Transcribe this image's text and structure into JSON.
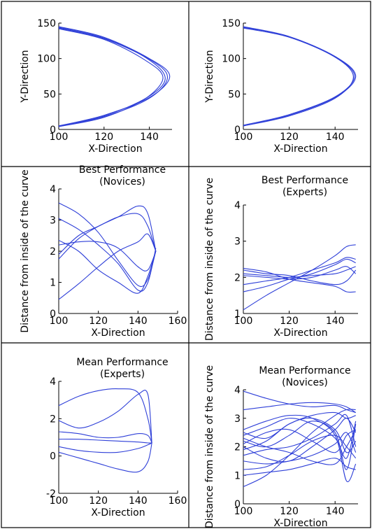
{
  "style": {
    "line_color": "#2e3fd8",
    "grid_color": "#000000"
  },
  "chart_data": [
    {
      "type": "line",
      "title": [],
      "xlabel": "X-Direction",
      "ylabel": "Y-Direction",
      "xlim": [
        100,
        150
      ],
      "ylim": [
        0,
        150
      ],
      "xticks": [
        100,
        120,
        140
      ],
      "yticks": [
        0,
        50,
        100,
        150
      ],
      "series": [
        {
          "x": [
            100,
            120,
            140,
            149,
            140,
            120,
            100
          ],
          "y": [
            145,
            130,
            100,
            75,
            45,
            20,
            5
          ]
        },
        {
          "x": [
            100,
            120,
            140,
            148,
            140,
            120,
            100
          ],
          "y": [
            143,
            128,
            99,
            74,
            44,
            18,
            4
          ]
        },
        {
          "x": [
            100,
            120,
            138,
            146,
            138,
            120,
            100
          ],
          "y": [
            142,
            127,
            98,
            73,
            43,
            17,
            4
          ]
        },
        {
          "x": [
            100,
            120,
            139,
            147,
            139,
            120,
            100
          ],
          "y": [
            144,
            129,
            100,
            72,
            45,
            19,
            5
          ]
        }
      ]
    },
    {
      "type": "line",
      "title": [],
      "xlabel": "X-Direction",
      "ylabel": "Y-Direction",
      "xlim": [
        100,
        150
      ],
      "ylim": [
        0,
        150
      ],
      "xticks": [
        100,
        120,
        140
      ],
      "yticks": [
        0,
        50,
        100,
        150
      ],
      "series": [
        {
          "x": [
            100,
            120,
            140,
            149,
            140,
            120,
            100
          ],
          "y": [
            144,
            131,
            103,
            75,
            45,
            20,
            5
          ]
        },
        {
          "x": [
            100,
            120,
            140,
            148,
            140,
            120,
            100
          ],
          "y": [
            143,
            130,
            102,
            74,
            44,
            19,
            5
          ]
        },
        {
          "x": [
            100,
            120,
            140,
            148.5,
            140,
            120,
            100
          ],
          "y": [
            145,
            131,
            102,
            75,
            46,
            21,
            6
          ]
        }
      ]
    },
    {
      "type": "line",
      "title": [
        "Best Performance",
        "(Novices)"
      ],
      "xlabel": "X-Direction",
      "ylabel": "Distance from inside of the curve",
      "xlim": [
        100,
        160
      ],
      "ylim": [
        0,
        4
      ],
      "xticks": [
        100,
        120,
        140,
        160
      ],
      "yticks": [
        0,
        1,
        2,
        3,
        4
      ],
      "series": [
        {
          "x": [
            100,
            110,
            120,
            130,
            140,
            145,
            149
          ],
          "y": [
            3.55,
            3.2,
            2.6,
            1.7,
            0.9,
            1.1,
            2.0
          ]
        },
        {
          "x": [
            100,
            110,
            120,
            130,
            140,
            145,
            149
          ],
          "y": [
            3.05,
            2.7,
            2.2,
            1.6,
            0.75,
            1.0,
            2.1
          ]
        },
        {
          "x": [
            100,
            110,
            120,
            130,
            140,
            145,
            149
          ],
          "y": [
            2.35,
            2.0,
            1.4,
            1.0,
            0.65,
            1.2,
            2.0
          ]
        },
        {
          "x": [
            100,
            110,
            120,
            130,
            140,
            145,
            149
          ],
          "y": [
            1.75,
            2.4,
            2.8,
            3.1,
            3.45,
            3.2,
            2.0
          ]
        },
        {
          "x": [
            100,
            110,
            120,
            130,
            140,
            145,
            149
          ],
          "y": [
            1.9,
            2.5,
            2.8,
            3.1,
            3.2,
            2.8,
            2.0
          ]
        },
        {
          "x": [
            100,
            110,
            120,
            130,
            140,
            145,
            149
          ],
          "y": [
            0.45,
            0.95,
            1.5,
            2.0,
            2.3,
            2.55,
            2.0
          ]
        },
        {
          "x": [
            100,
            110,
            120,
            130,
            140,
            145,
            149
          ],
          "y": [
            2.2,
            2.3,
            2.3,
            2.1,
            1.5,
            1.4,
            2.0
          ]
        }
      ]
    },
    {
      "type": "line",
      "title": [
        "Best Performance",
        "(Experts)"
      ],
      "xlabel": "X-Direction",
      "ylabel": "Distance from inside of the curve",
      "xlim": [
        100,
        150
      ],
      "ylim": [
        1,
        4
      ],
      "xticks": [
        100,
        120,
        140
      ],
      "yticks": [
        1,
        2,
        3,
        4
      ],
      "series": [
        {
          "x": [
            100,
            110,
            120,
            130,
            140,
            145,
            149
          ],
          "y": [
            1.1,
            1.5,
            1.85,
            2.2,
            2.6,
            2.85,
            2.9
          ]
        },
        {
          "x": [
            100,
            110,
            120,
            130,
            140,
            145,
            149
          ],
          "y": [
            1.6,
            1.75,
            1.95,
            2.1,
            2.35,
            2.5,
            2.4
          ]
        },
        {
          "x": [
            100,
            110,
            120,
            130,
            140,
            145,
            149
          ],
          "y": [
            2.25,
            2.15,
            1.95,
            1.85,
            1.75,
            1.6,
            1.6
          ]
        },
        {
          "x": [
            100,
            110,
            120,
            130,
            140,
            145,
            149
          ],
          "y": [
            2.1,
            2.05,
            2.0,
            2.05,
            2.1,
            2.2,
            2.3
          ]
        },
        {
          "x": [
            100,
            110,
            120,
            130,
            140,
            145,
            149
          ],
          "y": [
            2.2,
            2.1,
            2.05,
            1.9,
            1.8,
            1.9,
            2.2
          ]
        },
        {
          "x": [
            100,
            110,
            120,
            130,
            140,
            145,
            149
          ],
          "y": [
            1.8,
            1.9,
            2.0,
            2.2,
            2.4,
            2.55,
            2.5
          ]
        },
        {
          "x": [
            100,
            110,
            120,
            130,
            140,
            145,
            149
          ],
          "y": [
            2.05,
            2.0,
            1.95,
            2.0,
            2.2,
            2.3,
            2.1
          ]
        }
      ]
    },
    {
      "type": "line",
      "title": [
        "Mean Performance",
        "(Experts)"
      ],
      "xlabel": "X-Direction",
      "ylabel": [],
      "xlim": [
        100,
        160
      ],
      "ylim": [
        -2,
        4
      ],
      "xticks": [
        100,
        120,
        140,
        160
      ],
      "yticks": [
        -2,
        0,
        2,
        4
      ],
      "series": [
        {
          "x": [
            100,
            110,
            120,
            130,
            140,
            145,
            147
          ],
          "y": [
            2.7,
            3.2,
            3.5,
            3.6,
            3.4,
            2.0,
            0.7
          ]
        },
        {
          "x": [
            100,
            110,
            120,
            130,
            140,
            145,
            147
          ],
          "y": [
            1.9,
            1.5,
            1.8,
            2.4,
            3.3,
            3.3,
            0.7
          ]
        },
        {
          "x": [
            100,
            110,
            120,
            130,
            140,
            145,
            147
          ],
          "y": [
            1.3,
            1.2,
            1.0,
            1.0,
            1.2,
            1.1,
            0.7
          ]
        },
        {
          "x": [
            100,
            110,
            120,
            130,
            140,
            145,
            147
          ],
          "y": [
            0.9,
            0.9,
            0.85,
            0.8,
            0.75,
            0.7,
            0.7
          ]
        },
        {
          "x": [
            100,
            110,
            120,
            130,
            140,
            145,
            147
          ],
          "y": [
            0.5,
            0.3,
            0.2,
            0.2,
            0.4,
            0.6,
            0.7
          ]
        },
        {
          "x": [
            100,
            110,
            120,
            130,
            140,
            145,
            147
          ],
          "y": [
            0.2,
            -0.1,
            -0.4,
            -0.7,
            -0.85,
            -0.3,
            0.7
          ]
        }
      ]
    },
    {
      "type": "line",
      "title": [
        "Mean Performance",
        "(Novices)"
      ],
      "xlabel": "X-Direction",
      "ylabel": "Distance from inside of the curve",
      "xlim": [
        100,
        150
      ],
      "ylim": [
        0,
        4
      ],
      "xticks": [
        100,
        120,
        140
      ],
      "yticks": [
        0,
        1,
        2,
        3,
        4
      ],
      "series": [
        {
          "x": [
            100,
            110,
            120,
            130,
            140,
            145,
            149
          ],
          "y": [
            3.95,
            3.7,
            3.5,
            3.4,
            3.45,
            3.3,
            3.2
          ]
        },
        {
          "x": [
            100,
            110,
            120,
            130,
            140,
            145,
            149
          ],
          "y": [
            3.3,
            3.4,
            3.5,
            3.55,
            3.5,
            3.4,
            3.2
          ]
        },
        {
          "x": [
            100,
            110,
            120,
            130,
            140,
            145,
            149
          ],
          "y": [
            2.5,
            2.3,
            2.8,
            3.1,
            3.2,
            3.0,
            3.1
          ]
        },
        {
          "x": [
            100,
            110,
            120,
            130,
            140,
            145,
            149
          ],
          "y": [
            2.4,
            2.7,
            3.0,
            2.8,
            2.3,
            1.6,
            2.9
          ]
        },
        {
          "x": [
            100,
            110,
            120,
            130,
            140,
            145,
            149
          ],
          "y": [
            2.2,
            2.0,
            2.4,
            2.9,
            2.5,
            1.2,
            2.8
          ]
        },
        {
          "x": [
            100,
            110,
            120,
            130,
            140,
            145,
            149
          ],
          "y": [
            2.1,
            2.5,
            2.6,
            2.2,
            1.8,
            2.4,
            2.6
          ]
        },
        {
          "x": [
            100,
            110,
            120,
            130,
            140,
            145,
            149
          ],
          "y": [
            2.0,
            1.6,
            1.5,
            2.0,
            2.6,
            3.0,
            2.5
          ]
        },
        {
          "x": [
            100,
            110,
            120,
            130,
            140,
            145,
            149
          ],
          "y": [
            1.9,
            2.2,
            2.8,
            3.0,
            2.6,
            1.8,
            2.2
          ]
        },
        {
          "x": [
            100,
            110,
            120,
            130,
            140,
            145,
            149
          ],
          "y": [
            1.7,
            1.9,
            2.0,
            2.3,
            2.8,
            3.1,
            2.0
          ]
        },
        {
          "x": [
            100,
            110,
            120,
            130,
            140,
            145,
            149
          ],
          "y": [
            1.5,
            1.4,
            1.5,
            1.7,
            2.1,
            2.5,
            1.8
          ]
        },
        {
          "x": [
            100,
            110,
            120,
            130,
            140,
            145,
            149
          ],
          "y": [
            1.2,
            1.3,
            1.7,
            2.2,
            2.4,
            2.0,
            1.6
          ]
        },
        {
          "x": [
            100,
            110,
            120,
            130,
            140,
            145,
            149
          ],
          "y": [
            1.0,
            1.1,
            1.2,
            1.4,
            1.6,
            1.3,
            1.2
          ]
        },
        {
          "x": [
            100,
            110,
            120,
            130,
            140,
            145,
            149
          ],
          "y": [
            2.3,
            2.0,
            1.8,
            1.5,
            1.4,
            2.0,
            2.6
          ]
        },
        {
          "x": [
            100,
            110,
            120,
            130,
            140,
            145,
            149
          ],
          "y": [
            2.6,
            2.9,
            3.1,
            3.0,
            2.4,
            0.8,
            1.4
          ]
        },
        {
          "x": [
            100,
            110,
            120,
            130,
            140,
            145,
            149
          ],
          "y": [
            0.6,
            1.0,
            1.7,
            2.5,
            3.1,
            3.3,
            3.3
          ]
        }
      ]
    }
  ]
}
